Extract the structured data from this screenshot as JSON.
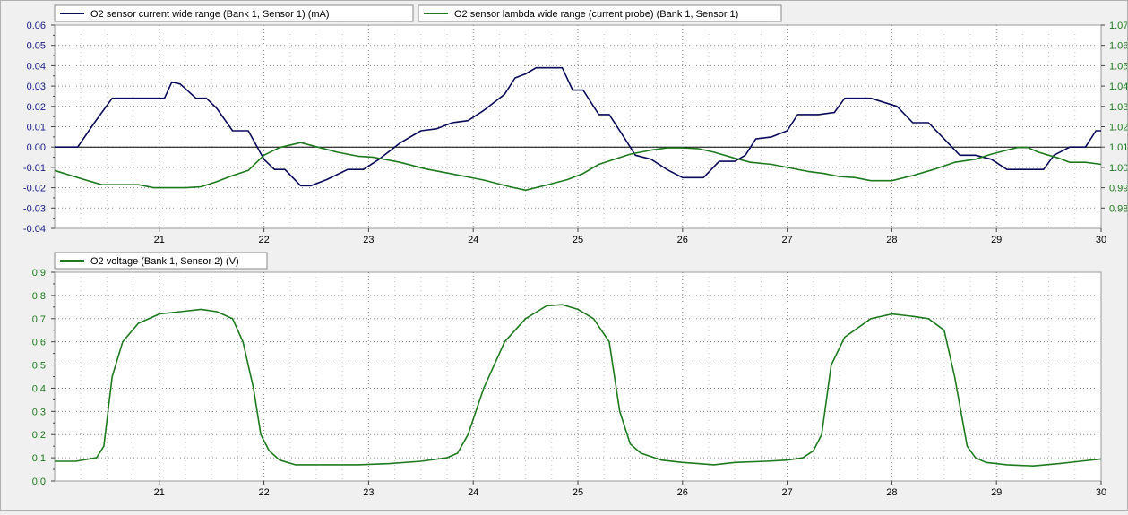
{
  "colors": {
    "background": "#f0f0f0",
    "plot_area": "#ffffff",
    "navy": "#0a0a5a",
    "green": "#1e7a1e",
    "grid": "#8a8a8a",
    "zero_line": "#000000",
    "axis_text": "#000000",
    "axis_text_blue": "#1a1a8a",
    "axis_text_green": "#1e7a1e"
  },
  "chart_data": [
    {
      "type": "line",
      "title": "",
      "x_ticks": [
        21,
        22,
        23,
        24,
        25,
        26,
        27,
        28,
        29,
        30
      ],
      "xlim": [
        20,
        30
      ],
      "y_left_ticks": [
        "0.06",
        "0.05",
        "0.04",
        "0.03",
        "0.02",
        "0.01",
        "0.00",
        "-0.01",
        "-0.02",
        "-0.03",
        "-0.04"
      ],
      "y_left_values": [
        0.06,
        0.05,
        0.04,
        0.03,
        0.02,
        0.01,
        0.0,
        -0.01,
        -0.02,
        -0.03,
        -0.04
      ],
      "ylim_left": [
        -0.04,
        0.06
      ],
      "y_right_ticks": [
        "1.07",
        "1.06",
        "1.05",
        "1.04",
        "1.03",
        "1.02",
        "1.01",
        "1.00",
        "0.99",
        "0.98"
      ],
      "y_right_values": [
        1.07,
        1.06,
        1.05,
        1.04,
        1.03,
        1.02,
        1.01,
        1.0,
        0.99,
        0.98
      ],
      "ylim_right": [
        0.97,
        1.07
      ],
      "grid": true,
      "legend_position": "top-left",
      "series": [
        {
          "name": "O2 sensor current wide range (Bank 1, Sensor 1) (mA)",
          "axis": "left",
          "color": "#0a0a5a",
          "x": [
            20.0,
            20.22,
            20.38,
            20.55,
            20.7,
            20.9,
            21.05,
            21.12,
            21.2,
            21.35,
            21.45,
            21.55,
            21.7,
            21.85,
            22.0,
            22.1,
            22.2,
            22.35,
            22.45,
            22.6,
            22.8,
            22.95,
            23.1,
            23.3,
            23.5,
            23.65,
            23.8,
            23.95,
            24.1,
            24.3,
            24.4,
            24.5,
            24.6,
            24.75,
            24.85,
            24.95,
            25.05,
            25.2,
            25.3,
            25.45,
            25.55,
            25.7,
            25.85,
            26.0,
            26.2,
            26.35,
            26.5,
            26.6,
            26.7,
            26.85,
            27.0,
            27.1,
            27.3,
            27.45,
            27.55,
            27.8,
            28.05,
            28.2,
            28.35,
            28.5,
            28.65,
            28.8,
            28.95,
            29.1,
            29.3,
            29.45,
            29.55,
            29.7,
            29.85,
            29.95,
            30.0
          ],
          "values": [
            0.0,
            0.0,
            0.012,
            0.024,
            0.024,
            0.024,
            0.024,
            0.032,
            0.031,
            0.024,
            0.024,
            0.019,
            0.008,
            0.008,
            -0.006,
            -0.011,
            -0.011,
            -0.019,
            -0.019,
            -0.016,
            -0.011,
            -0.011,
            -0.006,
            0.002,
            0.008,
            0.009,
            0.012,
            0.013,
            0.018,
            0.026,
            0.034,
            0.036,
            0.039,
            0.039,
            0.039,
            0.028,
            0.028,
            0.016,
            0.016,
            0.004,
            -0.004,
            -0.006,
            -0.011,
            -0.015,
            -0.015,
            -0.007,
            -0.007,
            -0.004,
            0.004,
            0.005,
            0.008,
            0.016,
            0.016,
            0.017,
            0.024,
            0.024,
            0.02,
            0.012,
            0.012,
            0.004,
            -0.004,
            -0.004,
            -0.006,
            -0.011,
            -0.011,
            -0.011,
            -0.004,
            0.0,
            0.0,
            0.008,
            0.008
          ]
        },
        {
          "name": "O2 sensor lambda wide range (current probe)  (Bank 1, Sensor 1)",
          "axis": "right",
          "color": "#1e7a1e",
          "x": [
            20.0,
            20.25,
            20.45,
            20.65,
            20.8,
            20.95,
            21.1,
            21.25,
            21.4,
            21.55,
            21.7,
            21.85,
            22.0,
            22.15,
            22.35,
            22.55,
            22.7,
            22.9,
            23.05,
            23.3,
            23.55,
            23.8,
            24.1,
            24.35,
            24.5,
            24.7,
            24.9,
            25.05,
            25.2,
            25.35,
            25.5,
            25.7,
            25.85,
            26.0,
            26.15,
            26.3,
            26.5,
            26.65,
            26.85,
            27.05,
            27.2,
            27.35,
            27.5,
            27.65,
            27.8,
            28.0,
            28.2,
            28.4,
            28.6,
            28.8,
            28.95,
            29.1,
            29.2,
            29.3,
            29.4,
            29.5,
            29.6,
            29.7,
            29.85,
            30.0
          ],
          "values": [
            0.9985,
            0.9945,
            0.9915,
            0.9915,
            0.9915,
            0.99,
            0.99,
            0.99,
            0.9905,
            0.993,
            0.996,
            0.9985,
            1.006,
            1.0098,
            1.0122,
            1.0095,
            1.0075,
            1.0055,
            1.005,
            1.0025,
            0.9992,
            0.9968,
            0.9938,
            0.9905,
            0.9888,
            0.9913,
            0.994,
            0.997,
            1.0015,
            1.004,
            1.0065,
            1.0085,
            1.0096,
            1.0096,
            1.0092,
            1.0075,
            1.0045,
            1.0025,
            1.0015,
            0.9995,
            0.998,
            0.997,
            0.9955,
            0.995,
            0.9935,
            0.9935,
            0.996,
            0.999,
            1.0025,
            1.004,
            1.0065,
            1.0085,
            1.0098,
            1.0098,
            1.0075,
            1.006,
            1.0045,
            1.0025,
            1.0025,
            1.0015
          ]
        }
      ]
    },
    {
      "type": "line",
      "title": "",
      "x_ticks": [
        21,
        22,
        23,
        24,
        25,
        26,
        27,
        28,
        29,
        30
      ],
      "xlim": [
        20,
        30
      ],
      "y_ticks": [
        "0.9",
        "0.8",
        "0.7",
        "0.6",
        "0.5",
        "0.4",
        "0.3",
        "0.2",
        "0.1",
        "0.0"
      ],
      "y_values": [
        0.9,
        0.8,
        0.7,
        0.6,
        0.5,
        0.4,
        0.3,
        0.2,
        0.1,
        0.0
      ],
      "ylim": [
        0,
        0.9
      ],
      "grid": true,
      "legend_position": "top-left",
      "series": [
        {
          "name": "O2 voltage (Bank 1, Sensor 2) (V)",
          "axis": "left",
          "color": "#1e7a1e",
          "x": [
            20.0,
            20.2,
            20.4,
            20.47,
            20.55,
            20.65,
            20.8,
            21.0,
            21.2,
            21.4,
            21.55,
            21.7,
            21.8,
            21.9,
            21.97,
            22.05,
            22.15,
            22.3,
            22.6,
            22.9,
            23.2,
            23.5,
            23.75,
            23.85,
            23.95,
            24.1,
            24.3,
            24.5,
            24.7,
            24.85,
            25.0,
            25.15,
            25.3,
            25.4,
            25.5,
            25.6,
            25.8,
            26.0,
            26.15,
            26.3,
            26.5,
            26.8,
            27.0,
            27.15,
            27.25,
            27.33,
            27.42,
            27.55,
            27.8,
            28.0,
            28.2,
            28.35,
            28.5,
            28.6,
            28.72,
            28.8,
            28.9,
            29.1,
            29.35,
            29.6,
            29.8,
            30.0
          ],
          "values": [
            0.085,
            0.085,
            0.1,
            0.15,
            0.45,
            0.6,
            0.68,
            0.72,
            0.73,
            0.74,
            0.73,
            0.7,
            0.6,
            0.4,
            0.2,
            0.13,
            0.09,
            0.07,
            0.07,
            0.07,
            0.075,
            0.085,
            0.1,
            0.12,
            0.2,
            0.4,
            0.6,
            0.7,
            0.755,
            0.76,
            0.74,
            0.7,
            0.6,
            0.3,
            0.16,
            0.12,
            0.09,
            0.08,
            0.075,
            0.07,
            0.08,
            0.085,
            0.09,
            0.1,
            0.13,
            0.2,
            0.5,
            0.62,
            0.7,
            0.72,
            0.71,
            0.7,
            0.65,
            0.45,
            0.15,
            0.1,
            0.08,
            0.07,
            0.065,
            0.075,
            0.085,
            0.095
          ]
        }
      ]
    }
  ]
}
